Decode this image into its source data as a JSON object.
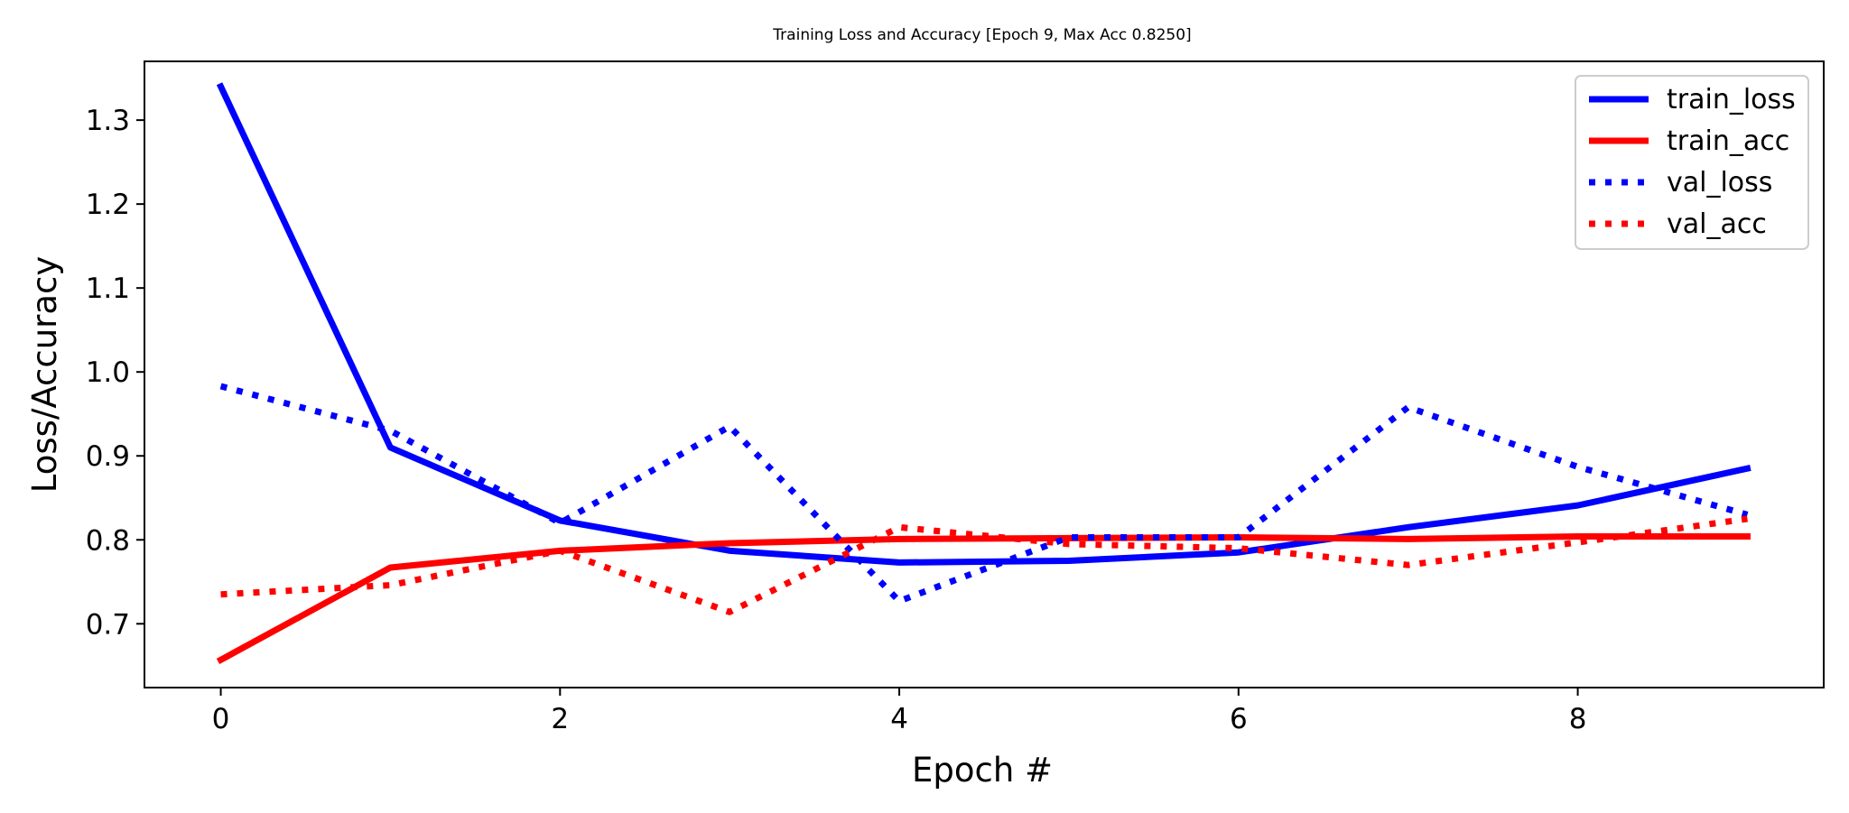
{
  "chart_data": {
    "type": "line",
    "title": "Training Loss and Accuracy [Epoch 9, Max Acc 0.8250]",
    "xlabel": "Epoch #",
    "ylabel": "Loss/Accuracy",
    "x": [
      0,
      1,
      2,
      3,
      4,
      5,
      6,
      7,
      8,
      9
    ],
    "xlim": [
      -0.45,
      9.45
    ],
    "ylim": [
      0.624,
      1.37
    ],
    "xticks": [
      0,
      2,
      4,
      6,
      8
    ],
    "xtick_labels": [
      "0",
      "2",
      "4",
      "6",
      "8"
    ],
    "yticks": [
      0.7,
      0.8,
      0.9,
      1.0,
      1.1,
      1.2,
      1.3
    ],
    "ytick_labels": [
      "0.7",
      "0.8",
      "0.9",
      "1.0",
      "1.1",
      "1.2",
      "1.3"
    ],
    "grid": false,
    "legend_position": "top-right",
    "series": [
      {
        "name": "train_loss",
        "color": "#0000ff",
        "style": "solid",
        "values": [
          1.34,
          0.91,
          0.823,
          0.787,
          0.773,
          0.775,
          0.785,
          0.815,
          0.841,
          0.885
        ]
      },
      {
        "name": "train_acc",
        "color": "#ff0000",
        "style": "solid",
        "values": [
          0.657,
          0.767,
          0.787,
          0.796,
          0.801,
          0.802,
          0.803,
          0.801,
          0.804,
          0.804
        ]
      },
      {
        "name": "val_loss",
        "color": "#0000ff",
        "style": "dotted",
        "values": [
          0.983,
          0.93,
          0.82,
          0.935,
          0.727,
          0.803,
          0.803,
          0.958,
          0.887,
          0.83
        ]
      },
      {
        "name": "val_acc",
        "color": "#ff0000",
        "style": "dotted",
        "values": [
          0.735,
          0.746,
          0.787,
          0.714,
          0.815,
          0.795,
          0.79,
          0.77,
          0.797,
          0.825
        ]
      }
    ]
  }
}
